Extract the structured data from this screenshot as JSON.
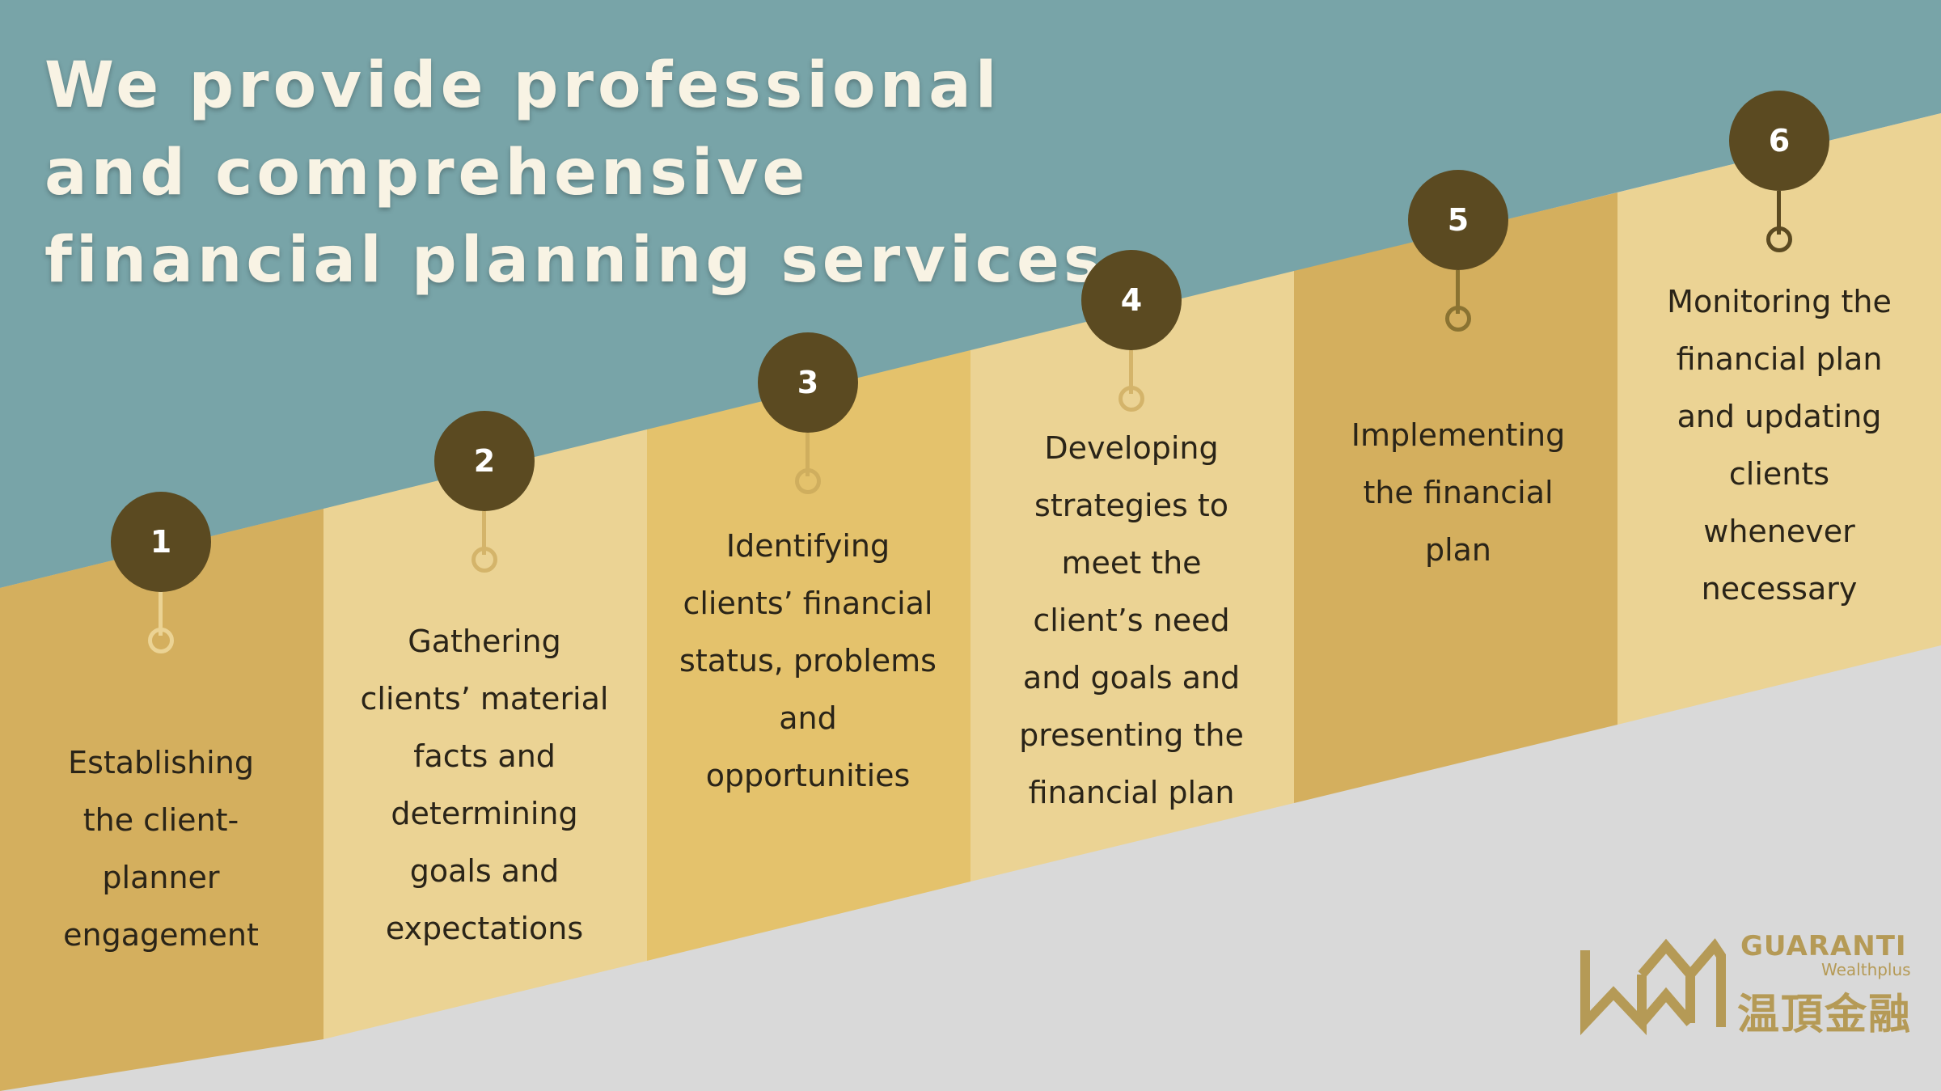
{
  "title_lines": [
    "We provide professional",
    "and comprehensive",
    "financial planning services"
  ],
  "steps": [
    {
      "number": "1",
      "text": "Establishing\nthe client-\nplanner\nengagement"
    },
    {
      "number": "2",
      "text": "Gathering\nclients’ material\nfacts and\ndetermining\ngoals and\nexpectations"
    },
    {
      "number": "3",
      "text": "Identifying\nclients’ financial\nstatus, problems\nand\nopportunities"
    },
    {
      "number": "4",
      "text": "Developing\nstrategies to\nmeet the\nclient’s need\nand goals and\npresenting the\nfinancial plan"
    },
    {
      "number": "5",
      "text": "Implementing\nthe financial\nplan"
    },
    {
      "number": "6",
      "text": "Monitoring the\nfinancial plan\nand updating\nclients\nwhenever\nnecessary"
    }
  ],
  "logo": {
    "name": "GUARANTI",
    "sub": "Wealthplus",
    "chinese": "温頂金融"
  },
  "colors": {
    "sky": "#78a4a8",
    "band_dark": "#d4af5e",
    "band_light": "#ebd394",
    "floor": "#d9d9d9",
    "badge": "#5b4a21",
    "title": "#f8f3e4",
    "logo": "#b59a56"
  }
}
